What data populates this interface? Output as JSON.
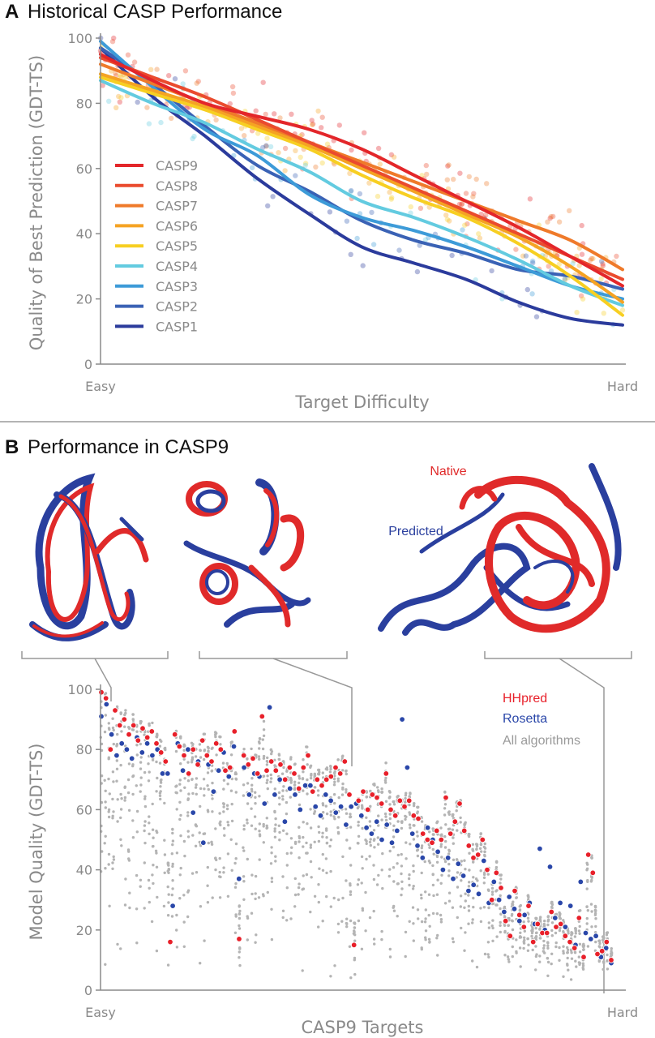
{
  "panel_a": {
    "letter": "A",
    "title": "Historical CASP Performance"
  },
  "panel_b": {
    "letter": "B",
    "title": "Performance in CASP9",
    "structures": {
      "native_label": "Native",
      "predicted_label": "Predicted",
      "native_color": "#e02a2a",
      "predicted_color": "#2a3f9e"
    }
  },
  "chart_data": [
    {
      "type": "line",
      "xlabel": "Target Difficulty",
      "ylabel": "Quality of Best Prediction (GDT-TS)",
      "x_tick_labels": [
        "Easy",
        "Hard"
      ],
      "xlim": [
        0,
        1
      ],
      "ylim": [
        0,
        100
      ],
      "yticks": [
        0,
        20,
        40,
        60,
        80,
        100
      ],
      "grid": false,
      "legend_position": "center-left",
      "x": [
        0,
        0.1,
        0.2,
        0.3,
        0.4,
        0.5,
        0.6,
        0.7,
        0.8,
        0.9,
        1.0
      ],
      "series": [
        {
          "name": "CASP9",
          "color": "#e3262a",
          "values": [
            95,
            87,
            80,
            76,
            72,
            66,
            58,
            50,
            42,
            33,
            24
          ]
        },
        {
          "name": "CASP8",
          "color": "#ea4b2e",
          "values": [
            94,
            88,
            82,
            75,
            68,
            61,
            54,
            47,
            40,
            33,
            26
          ]
        },
        {
          "name": "CASP7",
          "color": "#ef7a2a",
          "values": [
            92,
            86,
            80,
            74,
            68,
            62,
            56,
            50,
            44,
            38,
            29
          ]
        },
        {
          "name": "CASP6",
          "color": "#f5a323",
          "values": [
            89,
            84,
            79,
            73,
            67,
            60,
            53,
            46,
            39,
            30,
            19
          ]
        },
        {
          "name": "CASP5",
          "color": "#f7cf22",
          "values": [
            88,
            83,
            78,
            72,
            66,
            58,
            51,
            45,
            37,
            27,
            15
          ]
        },
        {
          "name": "CASP4",
          "color": "#63cbe0",
          "values": [
            87,
            80,
            74,
            66,
            59,
            50,
            45,
            39,
            32,
            24,
            18
          ]
        },
        {
          "name": "CASP3",
          "color": "#3d9bd8",
          "values": [
            99,
            85,
            72,
            64,
            52,
            45,
            41,
            36,
            30,
            24,
            20
          ]
        },
        {
          "name": "CASP2",
          "color": "#3a62b5",
          "values": [
            97,
            86,
            73,
            61,
            53,
            44,
            38,
            34,
            29,
            27,
            23
          ]
        },
        {
          "name": "CASP1",
          "color": "#2b3b9c",
          "values": [
            97,
            82,
            70,
            57,
            46,
            36,
            31,
            26,
            19,
            14,
            12
          ]
        }
      ]
    },
    {
      "type": "scatter",
      "xlabel": "CASP9 Targets",
      "ylabel": "Model Quality (GDT-TS)",
      "x_tick_labels": [
        "Easy",
        "Hard"
      ],
      "ylim": [
        0,
        100
      ],
      "yticks": [
        0,
        20,
        40,
        60,
        80,
        100
      ],
      "grid": false,
      "legend_position": "top-right",
      "series": [
        {
          "name": "HHpred",
          "color": "#e8202a",
          "values": [
            99,
            97,
            80,
            93,
            88,
            90,
            85,
            88,
            83,
            87,
            84,
            86,
            82,
            79,
            76,
            16,
            85,
            81,
            78,
            72,
            80,
            75,
            83,
            78,
            76,
            82,
            80,
            73,
            74,
            86,
            17,
            78,
            75,
            77,
            72,
            91,
            73,
            76,
            73,
            75,
            70,
            74,
            72,
            67,
            74,
            78,
            66,
            70,
            68,
            70,
            71,
            74,
            72,
            76,
            65,
            15,
            63,
            66,
            60,
            65,
            64,
            62,
            72,
            60,
            58,
            63,
            61,
            63,
            58,
            57,
            52,
            50,
            49,
            53,
            50,
            64,
            52,
            56,
            62,
            53,
            48,
            44,
            45,
            50,
            40,
            30,
            39,
            34,
            23,
            18,
            33,
            25,
            21,
            28,
            16,
            22,
            19,
            19,
            26,
            21,
            22,
            18,
            16,
            14,
            24,
            11,
            45,
            39,
            12,
            13,
            16,
            10
          ]
        },
        {
          "name": "Rosetta",
          "color": "#2a47a9",
          "values": [
            91,
            95,
            85,
            78,
            82,
            80,
            77,
            84,
            79,
            82,
            78,
            80,
            72,
            72,
            28,
            82,
            73,
            80,
            59,
            76,
            49,
            75,
            66,
            73,
            79,
            71,
            81,
            37,
            74,
            65,
            72,
            71,
            62,
            94,
            65,
            70,
            56,
            67,
            65,
            60,
            68,
            68,
            61,
            58,
            65,
            63,
            59,
            61,
            55,
            61,
            62,
            58,
            54,
            52,
            56,
            50,
            55,
            49,
            53,
            90,
            74,
            52,
            48,
            44,
            54,
            50,
            46,
            40,
            44,
            37,
            42,
            38,
            33,
            35,
            32,
            43,
            29,
            36,
            30,
            26,
            31,
            27,
            23,
            25,
            29,
            22,
            47,
            20,
            41,
            24,
            29,
            21,
            28,
            15,
            36,
            19,
            17,
            18,
            11,
            14,
            9
          ]
        },
        {
          "name": "All algorithms",
          "color": "#b4b4b4",
          "values": []
        }
      ]
    }
  ]
}
